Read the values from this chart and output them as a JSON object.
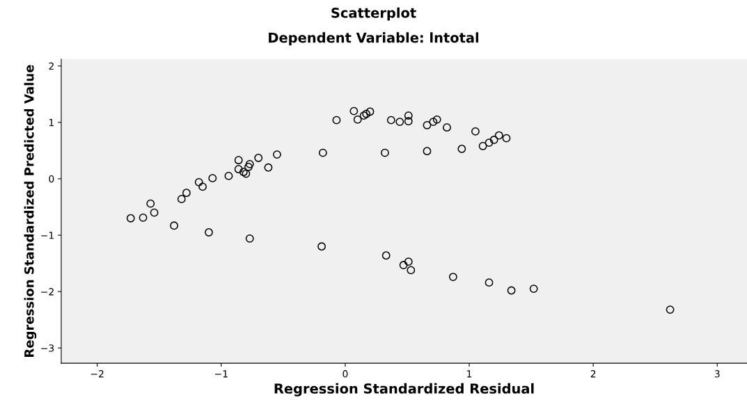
{
  "chart_data": {
    "type": "scatter",
    "title": "Scatterplot",
    "subtitle": "Dependent Variable: lntotal",
    "xlabel": "Regression Standardized Residual",
    "ylabel": "Regression Standardized Predicted Value",
    "x": [
      -1.73,
      -1.63,
      -1.57,
      -1.54,
      -1.38,
      -1.32,
      -1.28,
      -1.18,
      -1.15,
      -1.07,
      -0.94,
      -0.86,
      -0.86,
      -0.82,
      -0.8,
      -0.78,
      -0.77,
      -0.7,
      -0.62,
      -0.55,
      -0.18,
      -0.07,
      0.07,
      0.1,
      0.15,
      0.17,
      0.2,
      0.37,
      0.44,
      0.51,
      0.51,
      0.66,
      0.71,
      0.74,
      0.82,
      1.05,
      1.11,
      1.16,
      1.2,
      1.24,
      1.3,
      0.32,
      0.66,
      0.94,
      -1.1,
      -0.77,
      -0.19,
      0.33,
      0.47,
      0.51,
      0.53,
      0.87,
      1.16,
      1.34,
      1.52,
      2.62
    ],
    "series": [
      {
        "color": "#000000",
        "values": [
          -0.7,
          -0.69,
          -0.44,
          -0.6,
          -0.83,
          -0.36,
          -0.25,
          -0.06,
          -0.14,
          0.01,
          0.05,
          0.33,
          0.17,
          0.12,
          0.09,
          0.21,
          0.26,
          0.37,
          0.2,
          0.43,
          0.46,
          1.04,
          1.2,
          1.05,
          1.12,
          1.15,
          1.19,
          1.04,
          1.01,
          1.02,
          1.12,
          0.95,
          1.01,
          1.05,
          0.91,
          0.84,
          0.58,
          0.64,
          0.69,
          0.77,
          0.72,
          0.46,
          0.49,
          0.53,
          -0.95,
          -1.06,
          -1.2,
          -1.36,
          -1.53,
          -1.47,
          -1.62,
          -1.74,
          -1.84,
          -1.98,
          -1.95,
          -2.32
        ]
      }
    ],
    "xlim": [
      -2.29,
      3.24
    ],
    "ylim": [
      -3.27,
      2.12
    ],
    "xticks": [
      -2,
      -1,
      0,
      1,
      2,
      3
    ],
    "yticks": [
      -3,
      -2,
      -1,
      0,
      1,
      2
    ],
    "marker": "circle",
    "grid": false,
    "legend": false
  }
}
